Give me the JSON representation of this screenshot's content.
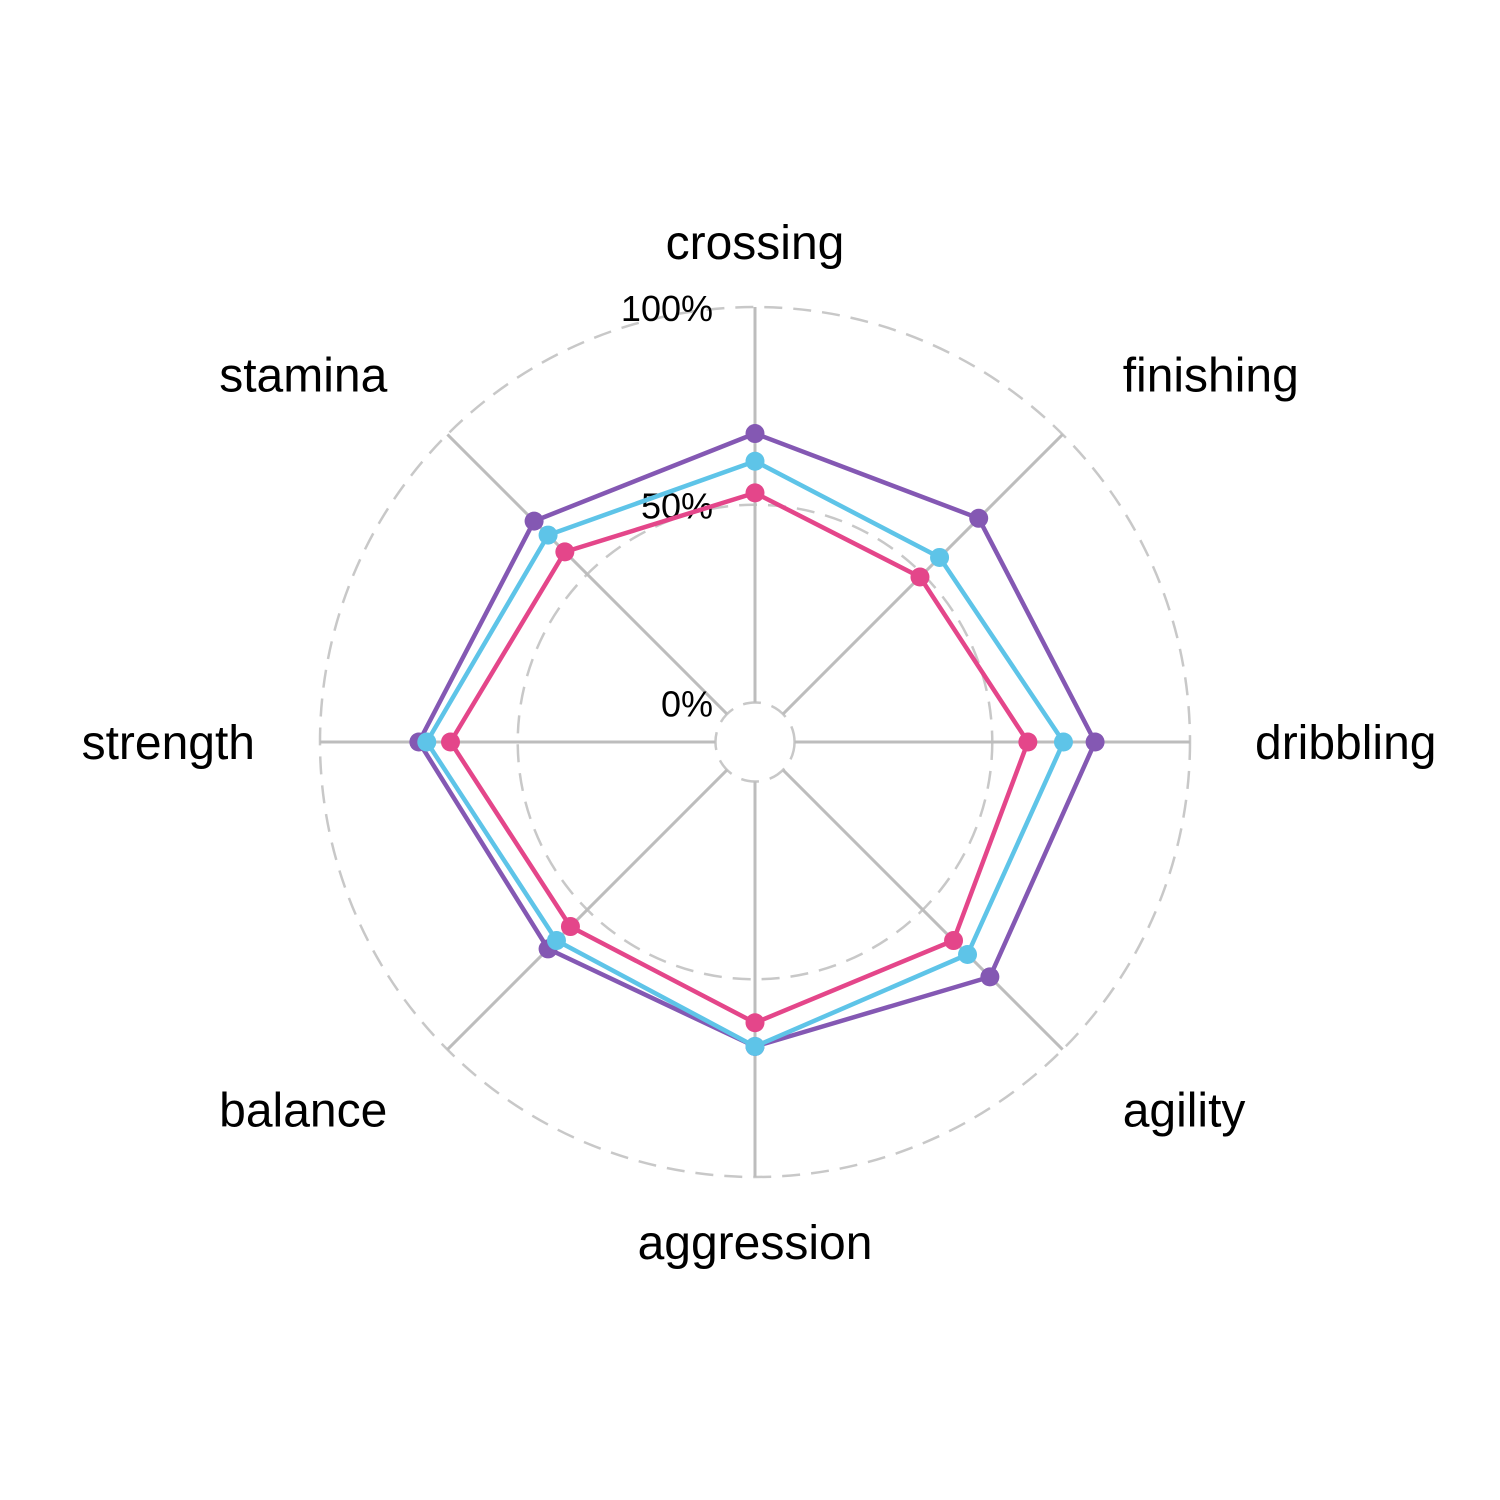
{
  "chart_data": {
    "type": "radar",
    "axes": [
      "crossing",
      "finishing",
      "dribbling",
      "agility",
      "aggression",
      "balance",
      "strength",
      "stamina"
    ],
    "grid_labels": [
      "0%",
      "50%",
      "100%"
    ],
    "range": [
      -10,
      100
    ],
    "grid_values": [
      0,
      50,
      100
    ],
    "series": [
      {
        "color": "#8458b3",
        "values": [
          68,
          70,
          76,
          74,
          67,
          64,
          75,
          69
        ]
      },
      {
        "color": "#5ec4e8",
        "values": [
          61,
          56,
          68,
          66,
          67,
          61,
          73,
          64
        ]
      },
      {
        "color": "#e4468a",
        "values": [
          53,
          49,
          59,
          61,
          61,
          56,
          67,
          58
        ]
      }
    ],
    "grid": true,
    "legend": "none"
  }
}
